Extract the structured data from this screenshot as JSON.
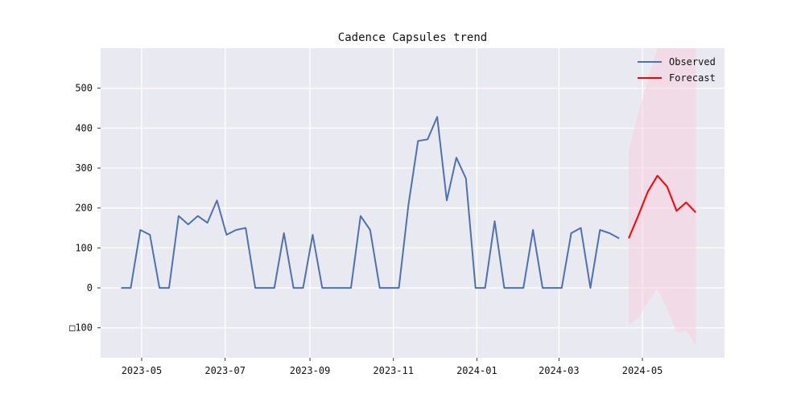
{
  "chart_data": {
    "type": "line",
    "title": "Cadence Capsules trend",
    "xlabel": "",
    "ylabel": "",
    "x_axis": {
      "type": "date",
      "range": [
        "2023-04-01",
        "2024-06-30"
      ],
      "ticks": [
        {
          "date": "2023-05-01",
          "label": "2023-05"
        },
        {
          "date": "2023-07-01",
          "label": "2023-07"
        },
        {
          "date": "2023-09-01",
          "label": "2023-09"
        },
        {
          "date": "2023-11-01",
          "label": "2023-11"
        },
        {
          "date": "2024-01-01",
          "label": "2024-01"
        },
        {
          "date": "2024-03-01",
          "label": "2024-03"
        },
        {
          "date": "2024-05-01",
          "label": "2024-05"
        }
      ]
    },
    "y_axis": {
      "ylim": [
        -175,
        600
      ],
      "ticks": [
        {
          "value": -100,
          "label": "□100"
        },
        {
          "value": 0,
          "label": "0"
        },
        {
          "value": 100,
          "label": "100"
        },
        {
          "value": 200,
          "label": "200"
        },
        {
          "value": 300,
          "label": "300"
        },
        {
          "value": 400,
          "label": "400"
        },
        {
          "value": 500,
          "label": "500"
        }
      ]
    },
    "grid": true,
    "legend_position": "top-right",
    "colors": {
      "background": "#e9e9f1",
      "grid": "#ffffff",
      "observed": "#4c72b0",
      "forecast": "#ff0000",
      "band": "#f8cfdf"
    },
    "series": [
      {
        "name": "Observed",
        "points": [
          [
            "2023-04-16",
            0
          ],
          [
            "2023-04-23",
            0
          ],
          [
            "2023-04-30",
            145
          ],
          [
            "2023-05-07",
            133
          ],
          [
            "2023-05-14",
            0
          ],
          [
            "2023-05-21",
            0
          ],
          [
            "2023-05-28",
            180
          ],
          [
            "2023-06-04",
            159
          ],
          [
            "2023-06-11",
            180
          ],
          [
            "2023-06-18",
            163
          ],
          [
            "2023-06-25",
            219
          ],
          [
            "2023-07-02",
            133
          ],
          [
            "2023-07-09",
            145
          ],
          [
            "2023-07-16",
            150
          ],
          [
            "2023-07-23",
            0
          ],
          [
            "2023-07-30",
            0
          ],
          [
            "2023-08-06",
            0
          ],
          [
            "2023-08-13",
            137
          ],
          [
            "2023-08-20",
            0
          ],
          [
            "2023-08-27",
            0
          ],
          [
            "2023-09-03",
            133
          ],
          [
            "2023-09-10",
            0
          ],
          [
            "2023-09-17",
            0
          ],
          [
            "2023-09-24",
            0
          ],
          [
            "2023-10-01",
            0
          ],
          [
            "2023-10-08",
            180
          ],
          [
            "2023-10-15",
            145
          ],
          [
            "2023-10-22",
            0
          ],
          [
            "2023-10-29",
            0
          ],
          [
            "2023-11-05",
            0
          ],
          [
            "2023-11-12",
            208
          ],
          [
            "2023-11-19",
            368
          ],
          [
            "2023-11-26",
            372
          ],
          [
            "2023-12-03",
            428
          ],
          [
            "2023-12-10",
            219
          ],
          [
            "2023-12-17",
            326
          ],
          [
            "2023-12-24",
            274
          ],
          [
            "2023-12-31",
            0
          ],
          [
            "2024-01-07",
            0
          ],
          [
            "2024-01-14",
            167
          ],
          [
            "2024-01-21",
            0
          ],
          [
            "2024-01-28",
            0
          ],
          [
            "2024-02-04",
            0
          ],
          [
            "2024-02-11",
            145
          ],
          [
            "2024-02-18",
            0
          ],
          [
            "2024-02-25",
            0
          ],
          [
            "2024-03-03",
            0
          ],
          [
            "2024-03-10",
            137
          ],
          [
            "2024-03-17",
            150
          ],
          [
            "2024-03-24",
            0
          ],
          [
            "2024-03-31",
            145
          ],
          [
            "2024-04-07",
            137
          ],
          [
            "2024-04-14",
            124
          ]
        ]
      },
      {
        "name": "Forecast",
        "points": [
          [
            "2024-04-21",
            124
          ],
          [
            "2024-04-28",
            181
          ],
          [
            "2024-05-05",
            241
          ],
          [
            "2024-05-12",
            281
          ],
          [
            "2024-05-19",
            254
          ],
          [
            "2024-05-26",
            193
          ],
          [
            "2024-06-02",
            214
          ],
          [
            "2024-06-09",
            189
          ]
        ],
        "band": {
          "upper": [
            [
              "2024-04-21",
              344
            ],
            [
              "2024-04-28",
              437
            ],
            [
              "2024-05-05",
              521
            ],
            [
              "2024-05-12",
              600
            ],
            [
              "2024-05-19",
              600
            ],
            [
              "2024-05-26",
              600
            ],
            [
              "2024-06-02",
              600
            ],
            [
              "2024-06-09",
              600
            ]
          ],
          "lower": [
            [
              "2024-04-21",
              -93
            ],
            [
              "2024-04-28",
              -75
            ],
            [
              "2024-05-05",
              -35
            ],
            [
              "2024-05-12",
              -1
            ],
            [
              "2024-05-19",
              -53
            ],
            [
              "2024-05-26",
              -111
            ],
            [
              "2024-06-02",
              -106
            ],
            [
              "2024-06-09",
              -143
            ]
          ]
        }
      }
    ]
  }
}
